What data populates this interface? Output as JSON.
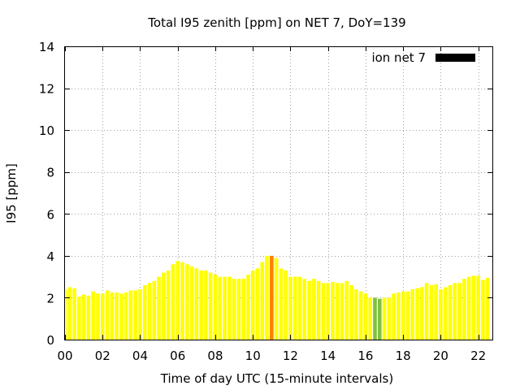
{
  "chart_data": {
    "type": "bar",
    "title": "Total I95 zenith [ppm] on NET 7, DoY=139",
    "xlabel": "Time of day UTC (15-minute intervals)",
    "ylabel": "I95 [ppm]",
    "ylim": [
      0,
      14
    ],
    "xlim": [
      0,
      22.75
    ],
    "yticks": [
      "0",
      "2",
      "4",
      "6",
      "8",
      "10",
      "12",
      "14"
    ],
    "yticks_values": [
      0,
      2,
      4,
      6,
      8,
      10,
      12,
      14
    ],
    "xticks": [
      "00",
      "02",
      "04",
      "06",
      "08",
      "10",
      "12",
      "14",
      "16",
      "18",
      "20",
      "22"
    ],
    "xticks_values": [
      0,
      2,
      4,
      6,
      8,
      10,
      12,
      14,
      16,
      18,
      20,
      22
    ],
    "grid": true,
    "legend": {
      "label": "ion net 7",
      "color": "#000000",
      "placement": "top-right"
    },
    "colors": {
      "normal": "#ffff00",
      "high": "#ff8000",
      "low": "#80c040",
      "highlight_alt": "#ffc000"
    },
    "interval_hours": 0.25,
    "values": [
      2.4,
      2.5,
      2.45,
      2.05,
      2.15,
      2.1,
      2.3,
      2.2,
      2.2,
      2.35,
      2.25,
      2.25,
      2.2,
      2.25,
      2.35,
      2.35,
      2.4,
      2.6,
      2.7,
      2.8,
      3.0,
      3.2,
      3.3,
      3.6,
      3.75,
      3.7,
      3.6,
      3.5,
      3.4,
      3.3,
      3.3,
      3.2,
      3.1,
      3.0,
      3.0,
      3.0,
      2.9,
      2.9,
      2.9,
      3.1,
      3.3,
      3.4,
      3.7,
      4.0,
      4.0,
      3.9,
      3.4,
      3.3,
      3.0,
      3.0,
      3.0,
      2.9,
      2.8,
      2.9,
      2.8,
      2.7,
      2.7,
      2.75,
      2.7,
      2.7,
      2.8,
      2.6,
      2.4,
      2.3,
      2.2,
      2.0,
      2.0,
      1.95,
      2.0,
      2.0,
      2.2,
      2.25,
      2.3,
      2.3,
      2.4,
      2.45,
      2.5,
      2.7,
      2.6,
      2.65,
      2.4,
      2.5,
      2.6,
      2.7,
      2.7,
      2.9,
      3.0,
      3.05,
      3.05,
      2.85,
      2.95
    ],
    "bar_colors": [
      "normal",
      "normal",
      "normal",
      "normal",
      "normal",
      "normal",
      "normal",
      "normal",
      "normal",
      "normal",
      "normal",
      "normal",
      "normal",
      "normal",
      "normal",
      "normal",
      "normal",
      "normal",
      "normal",
      "normal",
      "normal",
      "normal",
      "normal",
      "normal",
      "normal",
      "normal",
      "normal",
      "normal",
      "normal",
      "normal",
      "normal",
      "normal",
      "normal",
      "normal",
      "normal",
      "normal",
      "normal",
      "normal",
      "normal",
      "normal",
      "normal",
      "normal",
      "normal",
      "normal",
      "high",
      "normal",
      "normal",
      "normal",
      "normal",
      "normal",
      "normal",
      "normal",
      "normal",
      "normal",
      "normal",
      "normal",
      "normal",
      "normal",
      "normal",
      "normal",
      "normal",
      "normal",
      "normal",
      "normal",
      "normal",
      "normal",
      "low",
      "low",
      "normal",
      "normal",
      "normal",
      "normal",
      "normal",
      "normal",
      "normal",
      "normal",
      "normal",
      "normal",
      "normal",
      "normal",
      "normal",
      "normal",
      "normal",
      "normal",
      "normal",
      "normal",
      "normal",
      "normal",
      "normal",
      "normal",
      "normal"
    ]
  }
}
